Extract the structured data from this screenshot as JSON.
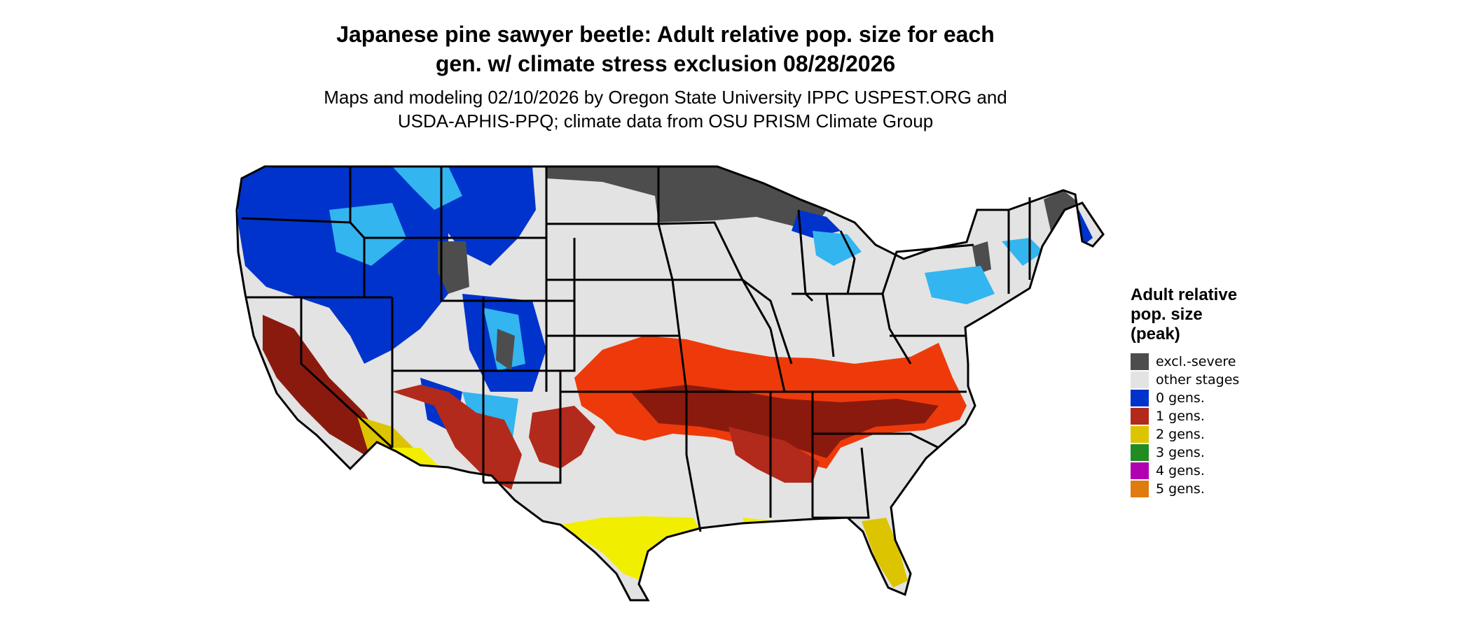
{
  "title": {
    "line1": "Japanese pine sawyer beetle: Adult relative pop. size for each",
    "line2": "gen. w/ climate stress exclusion 08/28/2026"
  },
  "subtitle": {
    "line1": "Maps and modeling 02/10/2026 by Oregon State University IPPC USPEST.ORG and",
    "line2": "USDA-APHIS-PPQ; climate data from OSU PRISM Climate Group"
  },
  "legend": {
    "title_lines": [
      "Adult relative",
      "pop. size",
      "(peak)"
    ],
    "items": [
      {
        "label": "excl.-severe",
        "color": "#4d4d4d"
      },
      {
        "label": "other stages",
        "color": "#e3e3e3"
      },
      {
        "label": "0 gens.",
        "color": "#0033cc"
      },
      {
        "label": "1 gens.",
        "color": "#b22a1c"
      },
      {
        "label": "2 gens.",
        "color": "#ddc400"
      },
      {
        "label": "3 gens.",
        "color": "#228b22"
      },
      {
        "label": "4 gens.",
        "color": "#b000b0"
      },
      {
        "label": "5 gens.",
        "color": "#e07b10"
      }
    ]
  },
  "map_colors": {
    "background": "#e3e3e3",
    "excluded": "#4d4d4d",
    "light_blue": "#33b5f0",
    "blue": "#0033cc",
    "dark_red": "#8b1a0e",
    "red_orange": "#ee3a0a",
    "yellow": "#ddc400",
    "bright_yellow": "#f2ee00",
    "state_lines": "#000000"
  }
}
